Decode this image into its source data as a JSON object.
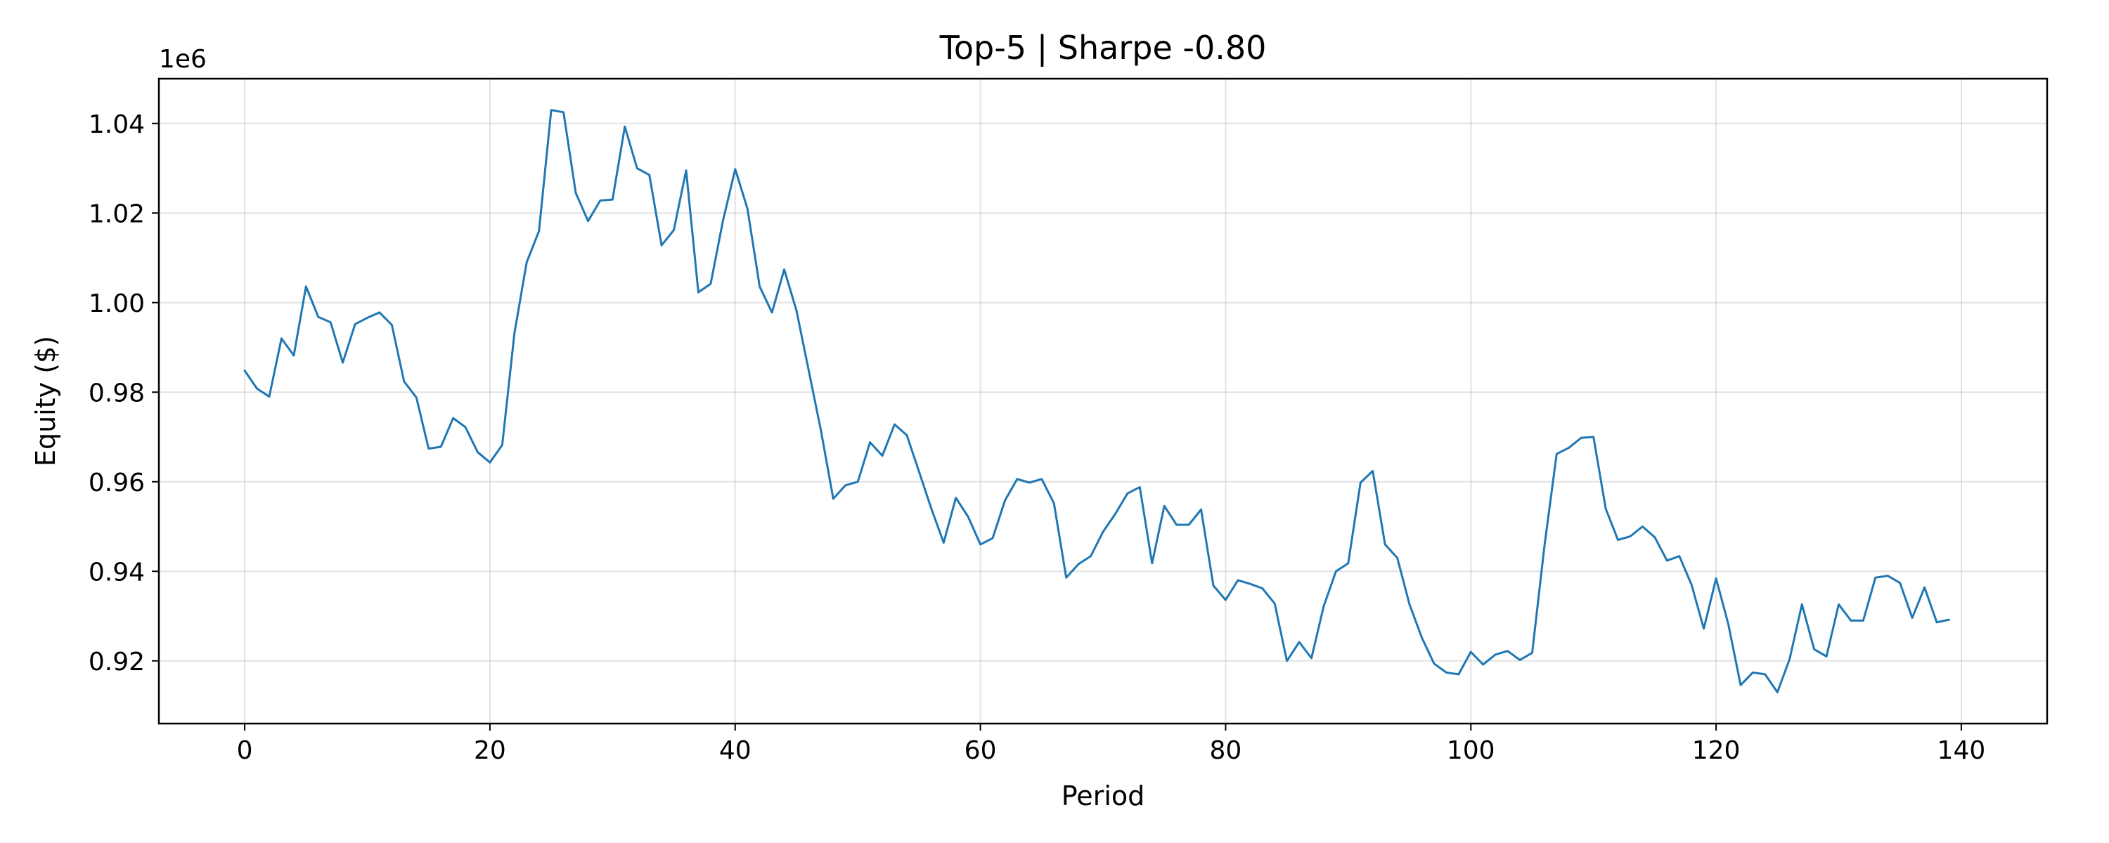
{
  "chart_data": {
    "type": "line",
    "title": "Top-5 | Sharpe -0.80",
    "xlabel": "Period",
    "ylabel": "Equity ($)",
    "y_offset_label": "1e6",
    "xlim": [
      -7,
      147
    ],
    "ylim": [
      906000,
      1050000
    ],
    "xticks": [
      0,
      20,
      40,
      60,
      80,
      100,
      120,
      140
    ],
    "xtick_labels": [
      "0",
      "20",
      "40",
      "60",
      "80",
      "100",
      "120",
      "140"
    ],
    "yticks": [
      920000,
      940000,
      960000,
      980000,
      1000000,
      1020000,
      1040000
    ],
    "ytick_labels": [
      "0.92",
      "0.94",
      "0.96",
      "0.98",
      "1.00",
      "1.02",
      "1.04"
    ],
    "grid": true,
    "colors": {
      "series": "#1f77b4"
    },
    "x": [
      0,
      1,
      2,
      3,
      4,
      5,
      6,
      7,
      8,
      9,
      10,
      11,
      12,
      13,
      14,
      15,
      16,
      17,
      18,
      19,
      20,
      21,
      22,
      23,
      24,
      25,
      26,
      27,
      28,
      29,
      30,
      31,
      32,
      33,
      34,
      35,
      36,
      37,
      38,
      39,
      40,
      41,
      42,
      43,
      44,
      45,
      46,
      47,
      48,
      49,
      50,
      51,
      52,
      53,
      54,
      55,
      56,
      57,
      58,
      59,
      60,
      61,
      62,
      63,
      64,
      65,
      66,
      67,
      68,
      69,
      70,
      71,
      72,
      73,
      74,
      75,
      76,
      77,
      78,
      79,
      80,
      81,
      82,
      83,
      84,
      85,
      86,
      87,
      88,
      89,
      90,
      91,
      92,
      93,
      94,
      95,
      96,
      97,
      98,
      99,
      100,
      101,
      102,
      103,
      104,
      105,
      106,
      107,
      108,
      109,
      110,
      111,
      112,
      113,
      114,
      115,
      116,
      117,
      118,
      119,
      120,
      121,
      122,
      123,
      124,
      125,
      126,
      127,
      128,
      129,
      130,
      131,
      132,
      133,
      134,
      135,
      136,
      137,
      138,
      139
    ],
    "series": [
      {
        "values": [
          984800,
          980800,
          979000,
          992000,
          988200,
          1003600,
          996800,
          995600,
          986600,
          995200,
          996600,
          997800,
          995000,
          982400,
          978800,
          967400,
          967800,
          974200,
          972200,
          966600,
          964300,
          968200,
          993200,
          1009000,
          1016000,
          1043000,
          1042500,
          1024500,
          1018200,
          1022800,
          1023000,
          1039300,
          1030000,
          1028500,
          1012800,
          1016200,
          1029500,
          1002300,
          1004200,
          1018200,
          1029800,
          1021000,
          1003600,
          997800,
          1007400,
          998200,
          984800,
          971400,
          956200,
          959200,
          960000,
          968800,
          965800,
          972800,
          970400,
          962200,
          954000,
          946400,
          956400,
          952200,
          946000,
          947400,
          955800,
          960600,
          959800,
          960600,
          955200,
          938600,
          941600,
          943400,
          948800,
          952800,
          957400,
          958800,
          941800,
          954600,
          950400,
          950400,
          953800,
          936800,
          933600,
          938000,
          937200,
          936200,
          932800,
          920000,
          924200,
          920600,
          932200,
          940000,
          941800,
          959800,
          962400,
          946000,
          943000,
          932600,
          925200,
          919400,
          917400,
          917000,
          922000,
          919200,
          921400,
          922200,
          920200,
          921800,
          945600,
          966200,
          967600,
          969800,
          970000,
          954000,
          947000,
          947800,
          950000,
          947600,
          942400,
          943400,
          937000,
          927200,
          938400,
          928200,
          914600,
          917400,
          917000,
          913000,
          920400,
          932600,
          922600,
          921000,
          932600,
          929000,
          929000,
          938600,
          939000,
          937400,
          929600,
          936400,
          928600,
          929200
        ]
      }
    ]
  }
}
